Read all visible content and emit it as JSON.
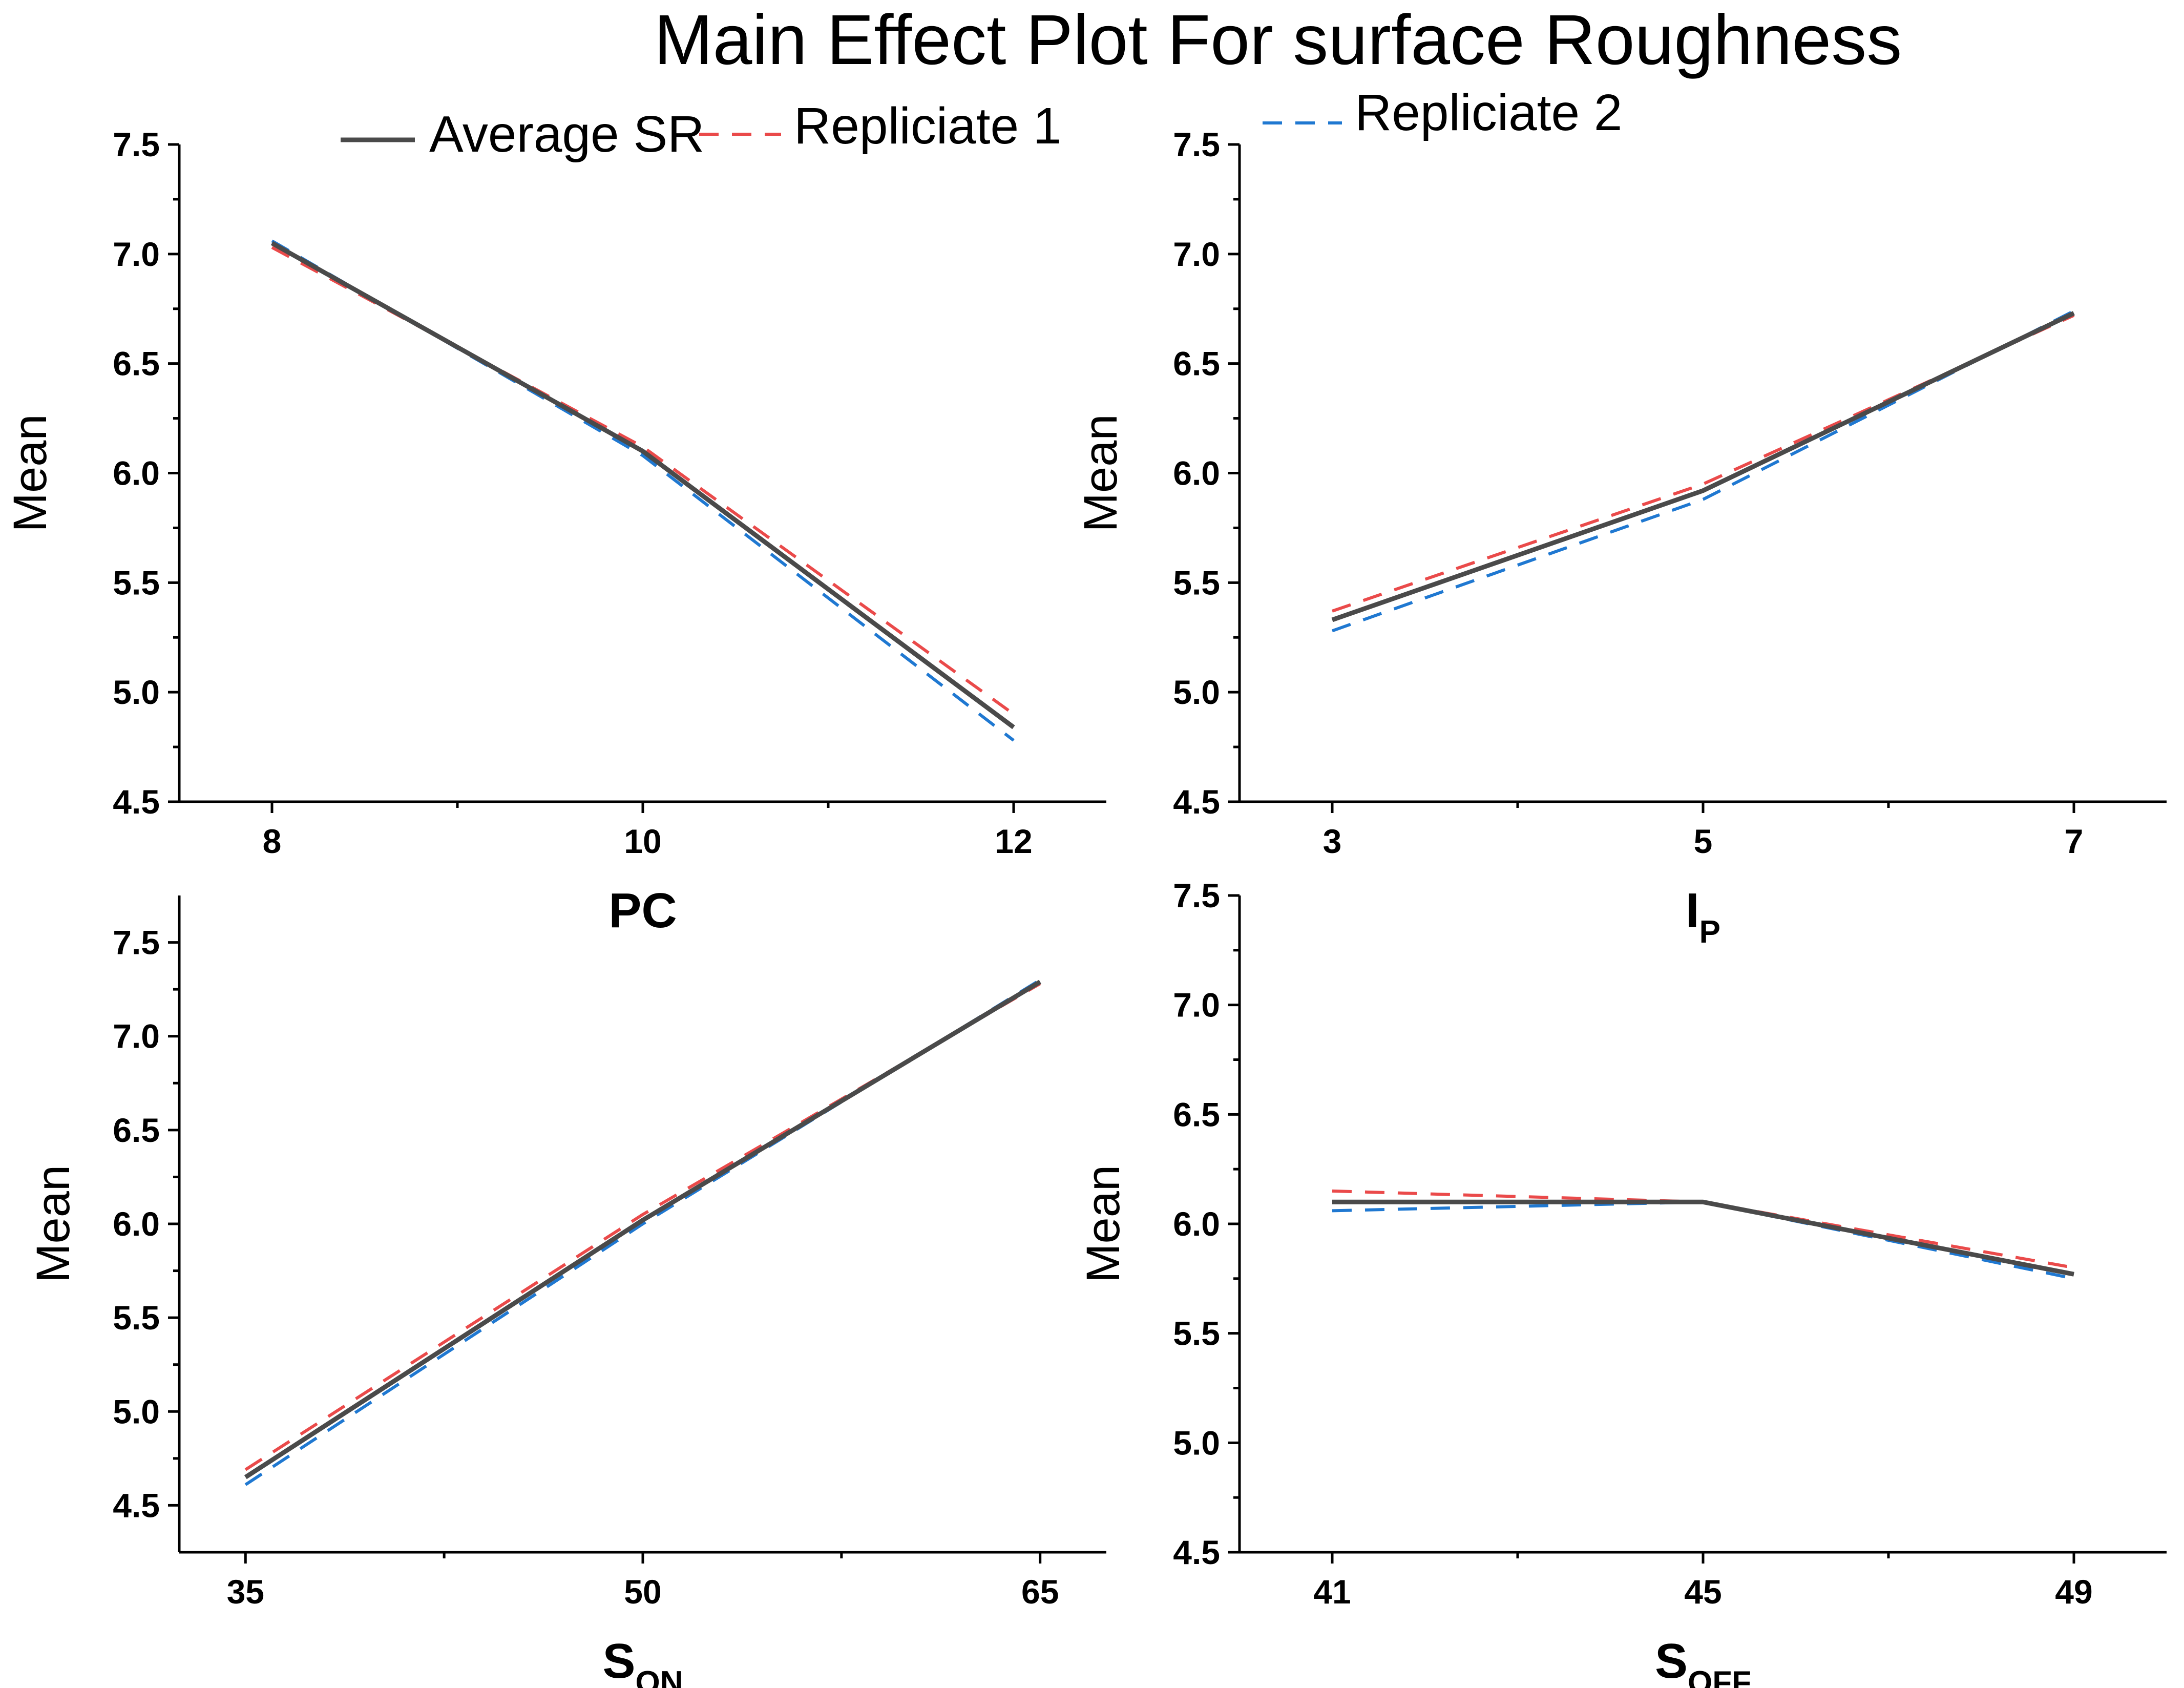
{
  "title": "Main Effect Plot For surface Roughness",
  "legend": [
    {
      "name": "Average SR",
      "color": "#4a4a4a",
      "dashed": false
    },
    {
      "name": "Repliciate 1",
      "color": "#ea4a4a",
      "dashed": true
    },
    {
      "name": "Repliciate 2",
      "color": "#1f78d1",
      "dashed": true
    }
  ],
  "chart_data": [
    {
      "type": "line",
      "ylabel": "Mean",
      "xlabel": {
        "main": "PC",
        "sub": ""
      },
      "x": [
        8,
        10,
        12
      ],
      "x_ticks": [
        "8",
        "10",
        "12"
      ],
      "xlim": [
        7.5,
        12.5
      ],
      "ylim": [
        4.5,
        7.5
      ],
      "y_ticks": [
        "4.5",
        "5.0",
        "5.5",
        "6.0",
        "6.5",
        "7.0",
        "7.5"
      ],
      "series": [
        {
          "name": "Average SR",
          "values": [
            7.05,
            6.1,
            4.84
          ]
        },
        {
          "name": "Repliciate 1",
          "values": [
            7.03,
            6.12,
            4.9
          ]
        },
        {
          "name": "Repliciate 2",
          "values": [
            7.06,
            6.08,
            4.78
          ]
        }
      ]
    },
    {
      "type": "line",
      "ylabel": "Mean",
      "xlabel": {
        "main": "I",
        "sub": "P"
      },
      "x": [
        3,
        5,
        7
      ],
      "x_ticks": [
        "3",
        "5",
        "7"
      ],
      "xlim": [
        2.5,
        7.5
      ],
      "ylim": [
        4.5,
        7.5
      ],
      "y_ticks": [
        "4.5",
        "5.0",
        "5.5",
        "6.0",
        "6.5",
        "7.0",
        "7.5"
      ],
      "series": [
        {
          "name": "Average SR",
          "values": [
            5.33,
            5.92,
            6.73
          ]
        },
        {
          "name": "Repliciate 1",
          "values": [
            5.37,
            5.95,
            6.72
          ]
        },
        {
          "name": "Repliciate 2",
          "values": [
            5.28,
            5.88,
            6.74
          ]
        }
      ]
    },
    {
      "type": "line",
      "ylabel": "Mean",
      "xlabel": {
        "main": "S",
        "sub": "ON"
      },
      "x": [
        35,
        50,
        65
      ],
      "x_ticks": [
        "35",
        "50",
        "65"
      ],
      "xlim": [
        32.5,
        67.5
      ],
      "ylim": [
        4.25,
        7.75
      ],
      "y_ticks": [
        "4.5",
        "5.0",
        "5.5",
        "6.0",
        "6.5",
        "7.0",
        "7.5"
      ],
      "series": [
        {
          "name": "Average SR",
          "values": [
            4.65,
            6.02,
            7.29
          ]
        },
        {
          "name": "Repliciate 1",
          "values": [
            4.69,
            6.05,
            7.28
          ]
        },
        {
          "name": "Repliciate 2",
          "values": [
            4.61,
            6.0,
            7.3
          ]
        }
      ]
    },
    {
      "type": "line",
      "ylabel": "Mean",
      "xlabel": {
        "main": "S",
        "sub": "OFF"
      },
      "x": [
        41,
        45,
        49
      ],
      "x_ticks": [
        "41",
        "45",
        "49"
      ],
      "xlim": [
        40,
        50
      ],
      "ylim": [
        4.5,
        7.5
      ],
      "y_ticks": [
        "4.5",
        "5.0",
        "5.5",
        "6.0",
        "6.5",
        "7.0",
        "7.5"
      ],
      "series": [
        {
          "name": "Average SR",
          "values": [
            6.1,
            6.1,
            5.77
          ]
        },
        {
          "name": "Repliciate 1",
          "values": [
            6.15,
            6.1,
            5.8
          ]
        },
        {
          "name": "Repliciate 2",
          "values": [
            6.06,
            6.1,
            5.75
          ]
        }
      ]
    }
  ]
}
